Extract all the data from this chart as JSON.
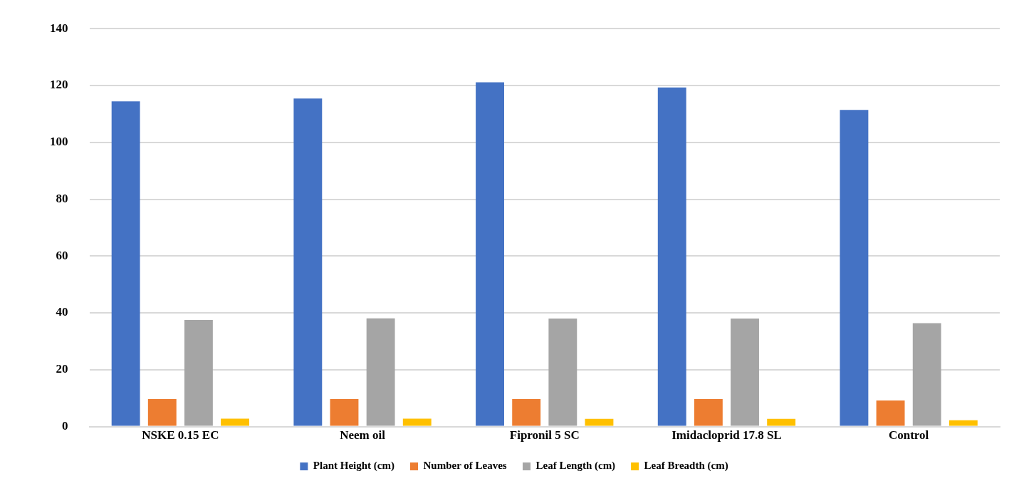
{
  "chart_data": {
    "type": "bar",
    "categories": [
      "NSKE 0.15 EC",
      "Neem oil",
      "Fipronil 5 SC",
      "Imidacloprid 17.8 SL",
      "Control"
    ],
    "series": [
      {
        "name": "Plant Height (cm)",
        "color": "#4472c4",
        "values": [
          114.4,
          115.4,
          121.1,
          119.3,
          111.4
        ]
      },
      {
        "name": "Number of Leaves",
        "color": "#ed7d31",
        "values": [
          9.7,
          9.7,
          9.7,
          9.7,
          9.2
        ]
      },
      {
        "name": "Leaf Length (cm)",
        "color": "#a5a5a5",
        "values": [
          37.5,
          38.1,
          38.0,
          38.0,
          36.4
        ]
      },
      {
        "name": "Leaf Breadth (cm)",
        "color": "#ffc000",
        "values": [
          2.8,
          2.8,
          2.7,
          2.7,
          2.2
        ]
      }
    ],
    "ylim": [
      0,
      140
    ],
    "yticks": [
      0,
      20,
      40,
      60,
      80,
      100,
      120,
      140
    ],
    "grid": "y",
    "legend": "bottom"
  }
}
